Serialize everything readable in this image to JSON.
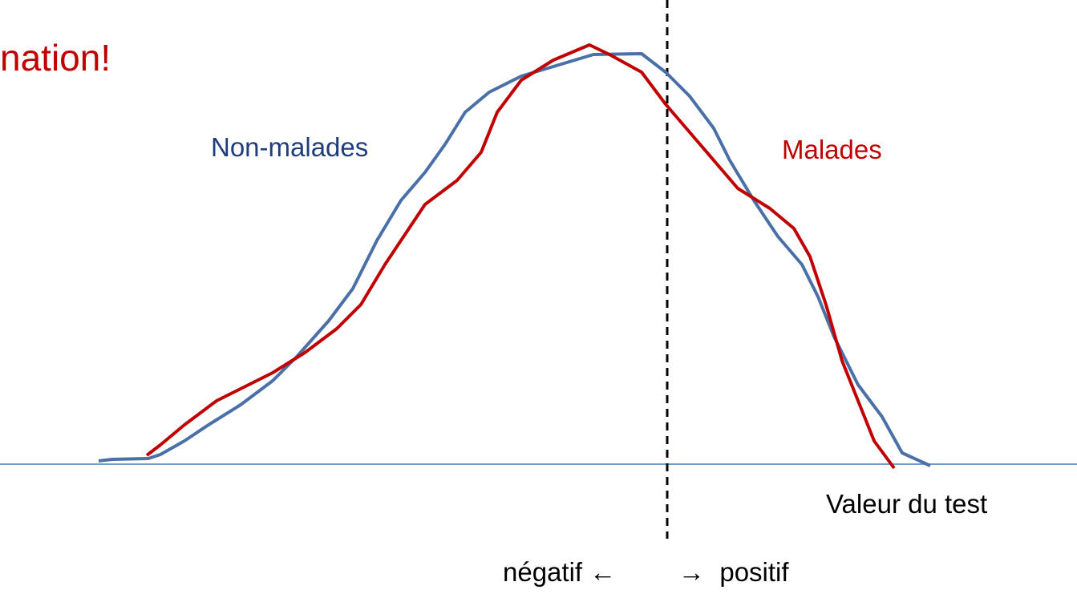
{
  "title": "nation!",
  "labels": {
    "non_malades": "Non-malades",
    "malades": "Malades",
    "axis": "Valeur du test",
    "negative": "négatif ←",
    "positive": "→  positif"
  }
}
